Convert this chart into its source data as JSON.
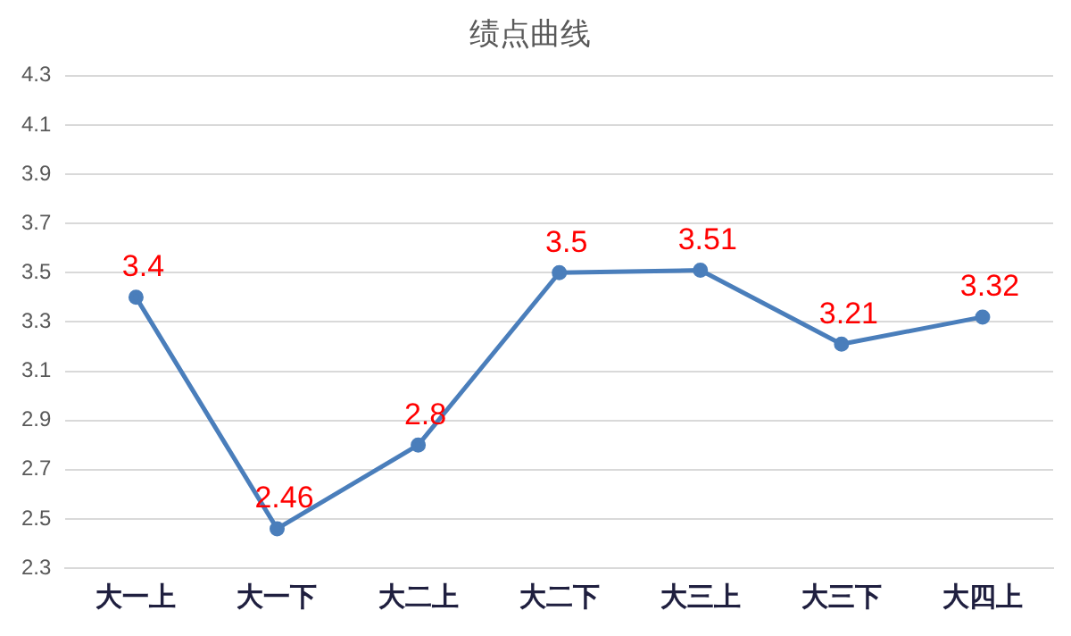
{
  "chart_data": {
    "type": "line",
    "title": "绩点曲线",
    "categories": [
      "大一上",
      "大一下",
      "大二上",
      "大二下",
      "大三上",
      "大三下",
      "大四上"
    ],
    "series": [
      {
        "color": "#4a7ebb",
        "values": [
          3.4,
          2.46,
          2.8,
          3.5,
          3.51,
          3.21,
          3.32
        ]
      }
    ],
    "ylim": [
      2.3,
      4.3
    ],
    "yticks": [
      2.3,
      2.5,
      2.7,
      2.9,
      3.1,
      3.3,
      3.5,
      3.7,
      3.9,
      4.1,
      4.3
    ],
    "grid": "y",
    "legend": false,
    "marker": "circle",
    "line_style": "solid",
    "data_labels": true
  }
}
